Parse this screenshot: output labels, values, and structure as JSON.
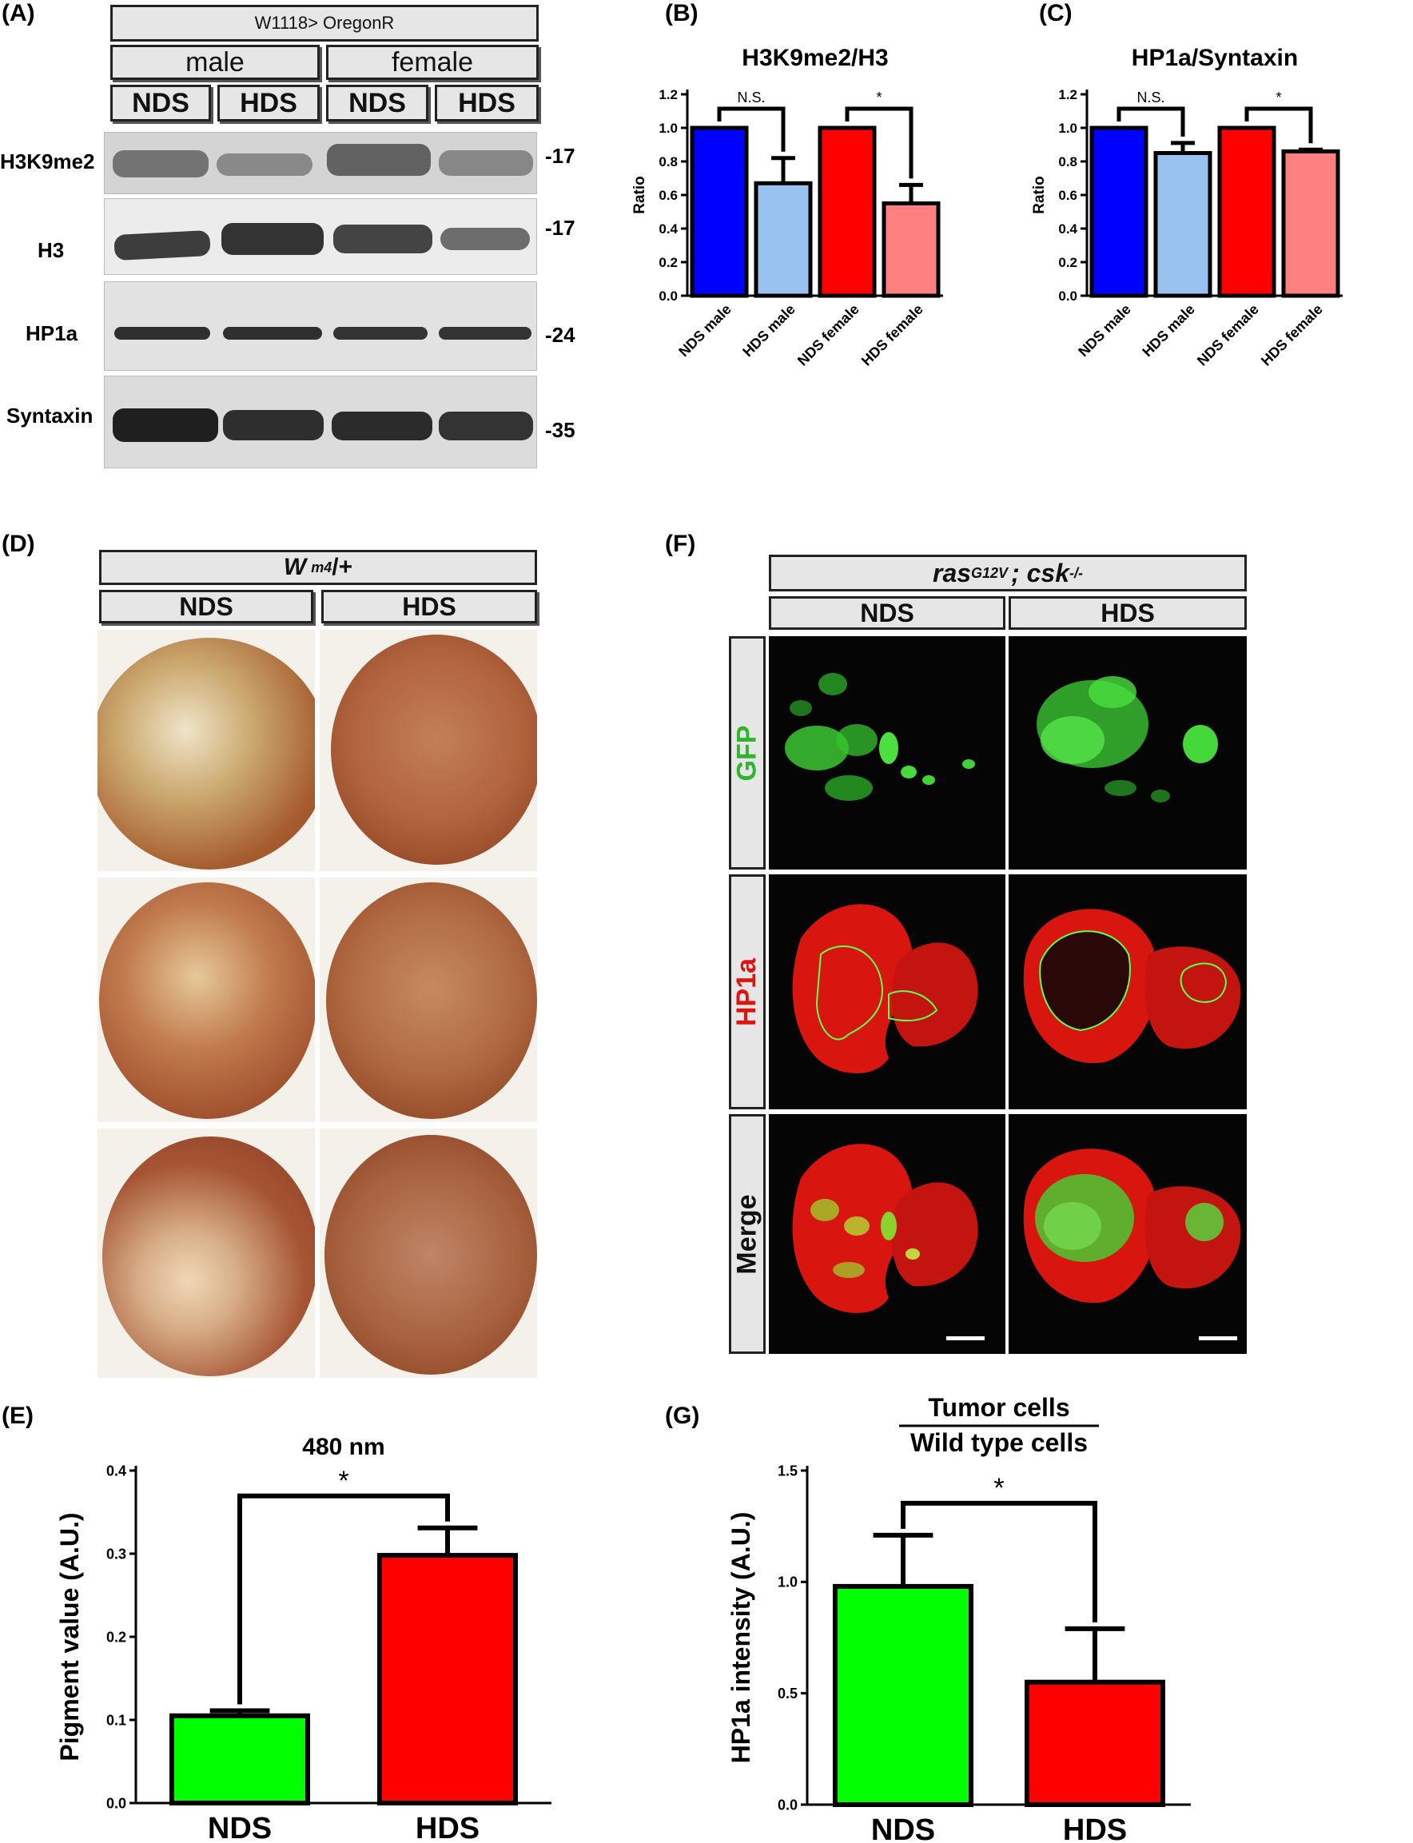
{
  "panels": {
    "A": {
      "label": "(A)",
      "genotype": "W1118> OregonR",
      "sexes": [
        "male",
        "female"
      ],
      "diets": [
        "NDS",
        "HDS",
        "NDS",
        "HDS"
      ],
      "blots": [
        {
          "name": "H3K9me2",
          "mw": "-17"
        },
        {
          "name": "H3",
          "mw": "-17"
        },
        {
          "name": "HP1a",
          "mw": "-24"
        },
        {
          "name": "Syntaxin",
          "mw": "-35"
        }
      ]
    },
    "B": {
      "label": "(B)"
    },
    "C": {
      "label": "(C)"
    },
    "D": {
      "label": "(D)",
      "genotype_base": "W",
      "genotype_sup": "m4",
      "genotype_tail": "/+",
      "diets": [
        "NDS",
        "HDS"
      ]
    },
    "E": {
      "label": "(E)"
    },
    "F": {
      "label": "(F)",
      "genotype_a": "ras",
      "genotype_a_sup": "G12V",
      "genotype_b": "; csk",
      "genotype_b_sup": "-/-",
      "diets": [
        "NDS",
        "HDS"
      ],
      "rows": [
        "GFP",
        "HP1a",
        "Merge"
      ]
    },
    "G": {
      "label": "(G)"
    }
  },
  "colors": {
    "blue": "#0000ff",
    "light_blue": "#99c2f0",
    "red": "#ff0000",
    "pink": "#ff8080",
    "green": "#00ff00",
    "fluor_green": "#39d630",
    "fluor_red": "#e0140f"
  },
  "chart_data": [
    {
      "id": "B",
      "type": "bar",
      "title": "H3K9me2/H3",
      "ylabel": "Ratio",
      "xlabel": "",
      "categories": [
        "NDS male",
        "HDS male",
        "NDS female",
        "HDS female"
      ],
      "values": [
        1.0,
        0.67,
        1.0,
        0.55
      ],
      "errors": [
        0,
        0.15,
        0,
        0.11
      ],
      "colors": [
        "#0000ff",
        "#99c2f0",
        "#ff0000",
        "#ff8080"
      ],
      "ylim": [
        0,
        1.2
      ],
      "yticks": [
        "0.0",
        "0.2",
        "0.4",
        "0.6",
        "0.8",
        "1.0",
        "1.2"
      ],
      "annotations": [
        {
          "text": "N.S.",
          "between": [
            0,
            1
          ]
        },
        {
          "text": "*",
          "between": [
            2,
            3
          ]
        }
      ]
    },
    {
      "id": "C",
      "type": "bar",
      "title": "HP1a/Syntaxin",
      "ylabel": "Ratio",
      "xlabel": "",
      "categories": [
        "NDS male",
        "HDS male",
        "NDS female",
        "HDS female"
      ],
      "values": [
        1.0,
        0.85,
        1.0,
        0.86
      ],
      "errors": [
        0,
        0.06,
        0,
        0.01
      ],
      "colors": [
        "#0000ff",
        "#99c2f0",
        "#ff0000",
        "#ff8080"
      ],
      "ylim": [
        0,
        1.2
      ],
      "yticks": [
        "0.0",
        "0.2",
        "0.4",
        "0.6",
        "0.8",
        "1.0",
        "1.2"
      ],
      "annotations": [
        {
          "text": "N.S.",
          "between": [
            0,
            1
          ]
        },
        {
          "text": "*",
          "between": [
            2,
            3
          ]
        }
      ]
    },
    {
      "id": "E",
      "type": "bar",
      "title": "480 nm",
      "ylabel": "Pigment value (A.U.)",
      "xlabel": "",
      "categories": [
        "NDS",
        "HDS"
      ],
      "values": [
        0.105,
        0.298
      ],
      "errors": [
        0.006,
        0.033
      ],
      "colors": [
        "#00ff00",
        "#ff0000"
      ],
      "ylim": [
        0,
        0.4
      ],
      "yticks": [
        "0.0",
        "0.1",
        "0.2",
        "0.3",
        "0.4"
      ],
      "annotations": [
        {
          "text": "*",
          "between": [
            0,
            1
          ]
        }
      ]
    },
    {
      "id": "G",
      "type": "bar",
      "title": "Tumor cells",
      "subtitle": "Wild type cells",
      "ylabel": "HP1a intensity (A.U.)",
      "xlabel": "",
      "categories": [
        "NDS",
        "HDS"
      ],
      "values": [
        0.98,
        0.55
      ],
      "errors": [
        0.23,
        0.24
      ],
      "colors": [
        "#00ff00",
        "#ff0000"
      ],
      "ylim": [
        0,
        1.5
      ],
      "yticks": [
        "0.0",
        "0.5",
        "1.0",
        "1.5"
      ],
      "annotations": [
        {
          "text": "*",
          "between": [
            0,
            1
          ]
        }
      ]
    }
  ]
}
